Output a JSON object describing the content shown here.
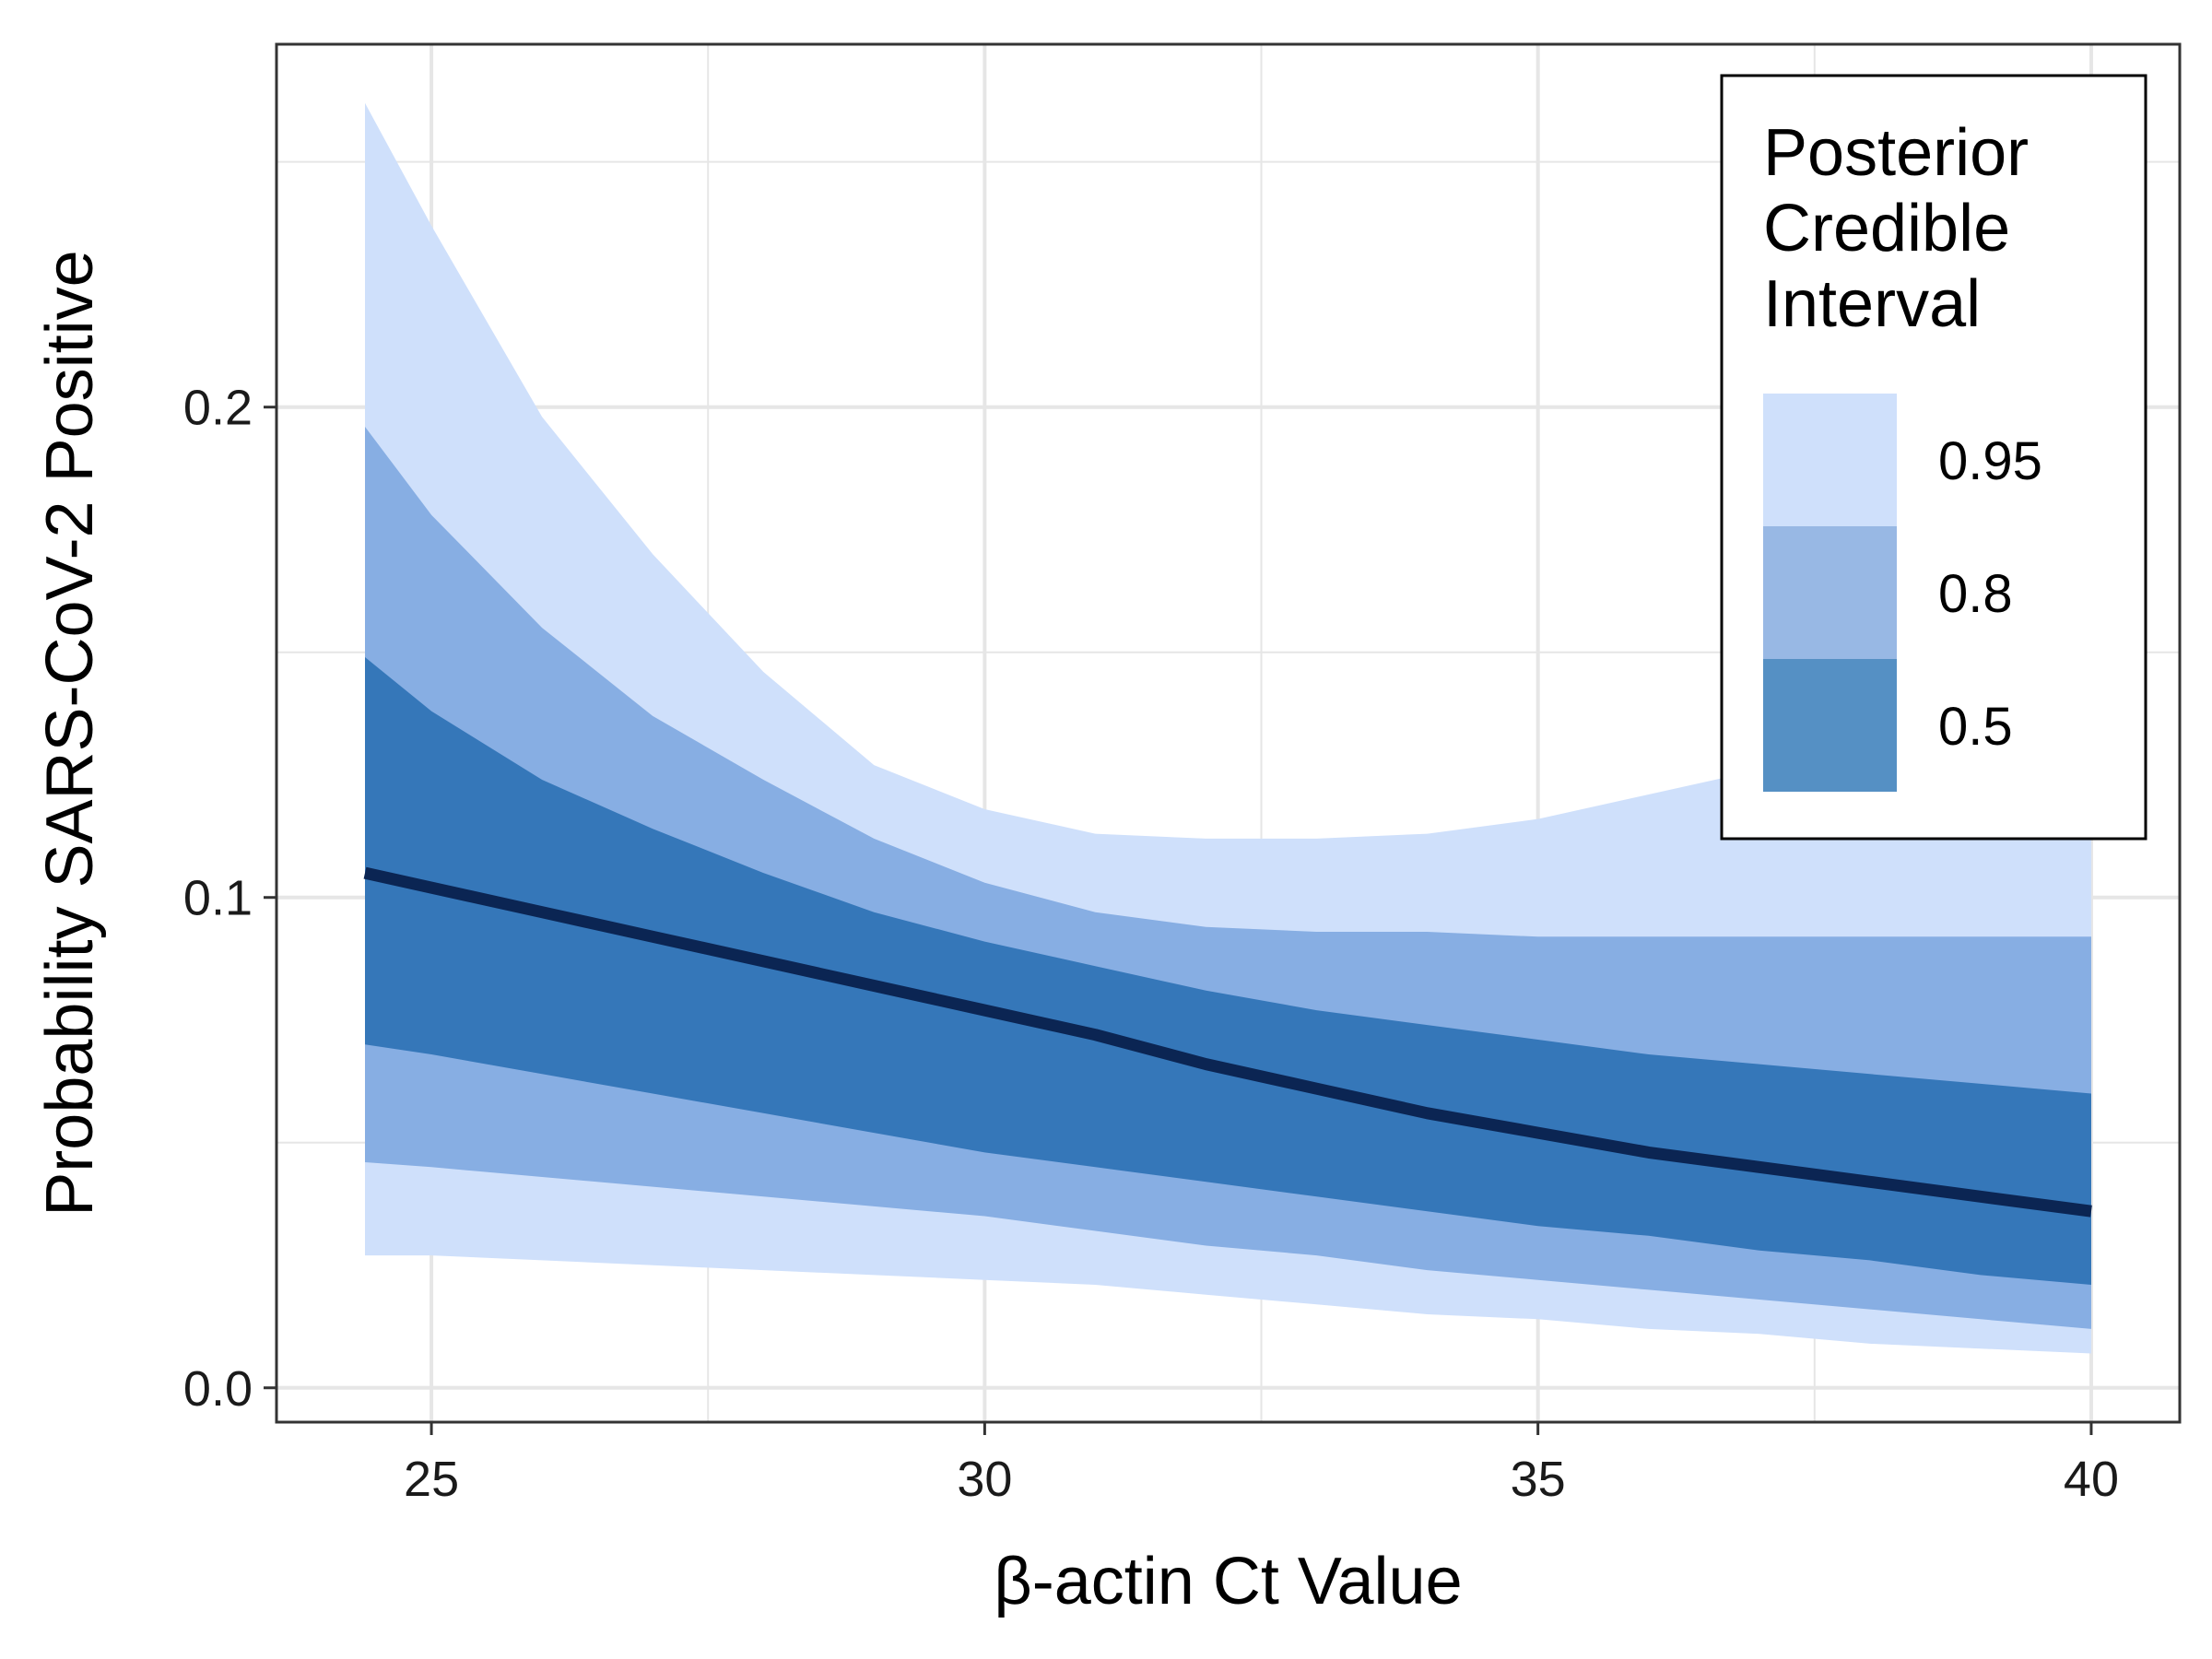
{
  "chart_data": {
    "type": "area",
    "title": "",
    "xlabel": "β-actin Ct Value",
    "ylabel": "Probability SARS-CoV-2 Positive",
    "xlim": [
      23.6,
      40.8
    ],
    "ylim": [
      -0.007,
      0.274
    ],
    "x_ticks": [
      25,
      30,
      35,
      40
    ],
    "x_tick_labels": [
      "25",
      "30",
      "35",
      "40"
    ],
    "y_ticks": [
      0.0,
      0.1,
      0.2
    ],
    "y_tick_labels": [
      "0.0",
      "0.1",
      "0.2"
    ],
    "grid": true,
    "legend": {
      "title_lines": [
        "Posterior",
        "Credible",
        "Interval"
      ],
      "placement": "top-right",
      "entries": [
        {
          "label": "0.95",
          "color": "#cfe0fb"
        },
        {
          "label": "0.8",
          "color": "#98b8e4"
        },
        {
          "label": "0.5",
          "color": "#5590c4"
        }
      ]
    },
    "colors": {
      "band_95": "#cfe0fb",
      "band_80": "#87aee3",
      "band_50": "#3577b9",
      "median": "#0b2553",
      "grid": "#e6e6e6",
      "panel_border": "#333333"
    },
    "x": [
      24.4,
      25,
      26,
      27,
      28,
      29,
      30,
      31,
      32,
      33,
      34,
      35,
      36,
      37,
      38,
      39,
      40
    ],
    "series": [
      {
        "interval": "0.95",
        "lower": [
          0.027,
          0.027,
          0.026,
          0.025,
          0.024,
          0.023,
          0.022,
          0.021,
          0.019,
          0.017,
          0.015,
          0.014,
          0.012,
          0.011,
          0.009,
          0.008,
          0.007
        ],
        "upper": [
          0.262,
          0.237,
          0.198,
          0.17,
          0.146,
          0.127,
          0.118,
          0.113,
          0.112,
          0.112,
          0.113,
          0.116,
          0.121,
          0.126,
          0.133,
          0.14,
          0.147
        ]
      },
      {
        "interval": "0.8",
        "lower": [
          0.046,
          0.045,
          0.043,
          0.041,
          0.039,
          0.037,
          0.035,
          0.032,
          0.029,
          0.027,
          0.024,
          0.022,
          0.02,
          0.018,
          0.016,
          0.014,
          0.012
        ],
        "upper": [
          0.196,
          0.178,
          0.155,
          0.137,
          0.124,
          0.112,
          0.103,
          0.097,
          0.094,
          0.093,
          0.093,
          0.092,
          0.092,
          0.092,
          0.092,
          0.092,
          0.092
        ]
      },
      {
        "interval": "0.5",
        "lower": [
          0.07,
          0.068,
          0.064,
          0.06,
          0.056,
          0.052,
          0.048,
          0.045,
          0.042,
          0.039,
          0.036,
          0.033,
          0.031,
          0.028,
          0.026,
          0.023,
          0.021
        ],
        "upper": [
          0.149,
          0.138,
          0.124,
          0.114,
          0.105,
          0.097,
          0.091,
          0.086,
          0.081,
          0.077,
          0.074,
          0.071,
          0.068,
          0.066,
          0.064,
          0.062,
          0.06
        ]
      },
      {
        "interval": "median",
        "values": [
          0.105,
          0.102,
          0.097,
          0.092,
          0.087,
          0.082,
          0.077,
          0.072,
          0.066,
          0.061,
          0.056,
          0.052,
          0.048,
          0.045,
          0.042,
          0.039,
          0.036
        ]
      }
    ]
  }
}
